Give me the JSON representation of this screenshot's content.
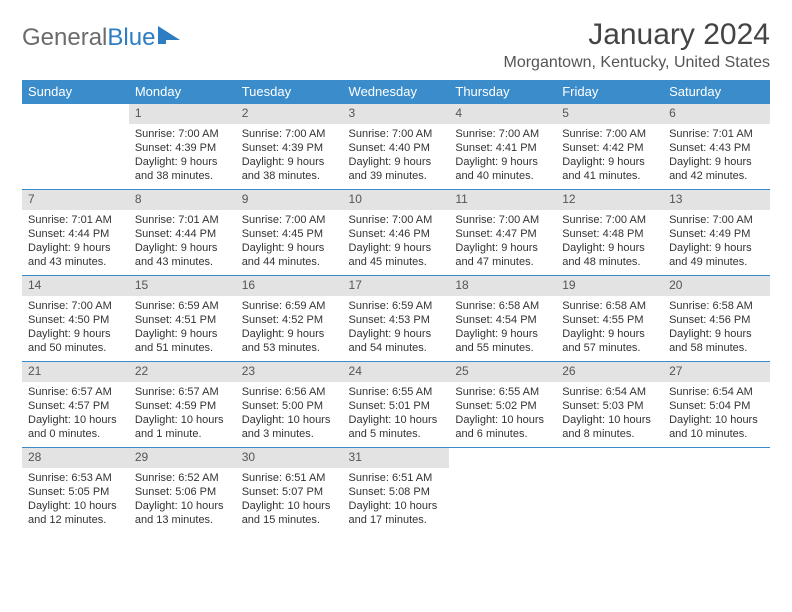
{
  "logo": {
    "word1": "General",
    "word2": "Blue"
  },
  "title": "January 2024",
  "location": "Morgantown, Kentucky, United States",
  "colors": {
    "header_bg": "#3b8ccb",
    "header_text": "#ffffff",
    "daynum_bg": "#e3e3e3",
    "row_border": "#3b8ccb",
    "logo_gray": "#6b6b6b",
    "logo_blue": "#2c7dc1"
  },
  "weekdays": [
    "Sunday",
    "Monday",
    "Tuesday",
    "Wednesday",
    "Thursday",
    "Friday",
    "Saturday"
  ],
  "weeks": [
    [
      {
        "n": "",
        "sr": "",
        "ss": "",
        "dl": ""
      },
      {
        "n": "1",
        "sr": "Sunrise: 7:00 AM",
        "ss": "Sunset: 4:39 PM",
        "dl": "Daylight: 9 hours and 38 minutes."
      },
      {
        "n": "2",
        "sr": "Sunrise: 7:00 AM",
        "ss": "Sunset: 4:39 PM",
        "dl": "Daylight: 9 hours and 38 minutes."
      },
      {
        "n": "3",
        "sr": "Sunrise: 7:00 AM",
        "ss": "Sunset: 4:40 PM",
        "dl": "Daylight: 9 hours and 39 minutes."
      },
      {
        "n": "4",
        "sr": "Sunrise: 7:00 AM",
        "ss": "Sunset: 4:41 PM",
        "dl": "Daylight: 9 hours and 40 minutes."
      },
      {
        "n": "5",
        "sr": "Sunrise: 7:00 AM",
        "ss": "Sunset: 4:42 PM",
        "dl": "Daylight: 9 hours and 41 minutes."
      },
      {
        "n": "6",
        "sr": "Sunrise: 7:01 AM",
        "ss": "Sunset: 4:43 PM",
        "dl": "Daylight: 9 hours and 42 minutes."
      }
    ],
    [
      {
        "n": "7",
        "sr": "Sunrise: 7:01 AM",
        "ss": "Sunset: 4:44 PM",
        "dl": "Daylight: 9 hours and 43 minutes."
      },
      {
        "n": "8",
        "sr": "Sunrise: 7:01 AM",
        "ss": "Sunset: 4:44 PM",
        "dl": "Daylight: 9 hours and 43 minutes."
      },
      {
        "n": "9",
        "sr": "Sunrise: 7:00 AM",
        "ss": "Sunset: 4:45 PM",
        "dl": "Daylight: 9 hours and 44 minutes."
      },
      {
        "n": "10",
        "sr": "Sunrise: 7:00 AM",
        "ss": "Sunset: 4:46 PM",
        "dl": "Daylight: 9 hours and 45 minutes."
      },
      {
        "n": "11",
        "sr": "Sunrise: 7:00 AM",
        "ss": "Sunset: 4:47 PM",
        "dl": "Daylight: 9 hours and 47 minutes."
      },
      {
        "n": "12",
        "sr": "Sunrise: 7:00 AM",
        "ss": "Sunset: 4:48 PM",
        "dl": "Daylight: 9 hours and 48 minutes."
      },
      {
        "n": "13",
        "sr": "Sunrise: 7:00 AM",
        "ss": "Sunset: 4:49 PM",
        "dl": "Daylight: 9 hours and 49 minutes."
      }
    ],
    [
      {
        "n": "14",
        "sr": "Sunrise: 7:00 AM",
        "ss": "Sunset: 4:50 PM",
        "dl": "Daylight: 9 hours and 50 minutes."
      },
      {
        "n": "15",
        "sr": "Sunrise: 6:59 AM",
        "ss": "Sunset: 4:51 PM",
        "dl": "Daylight: 9 hours and 51 minutes."
      },
      {
        "n": "16",
        "sr": "Sunrise: 6:59 AM",
        "ss": "Sunset: 4:52 PM",
        "dl": "Daylight: 9 hours and 53 minutes."
      },
      {
        "n": "17",
        "sr": "Sunrise: 6:59 AM",
        "ss": "Sunset: 4:53 PM",
        "dl": "Daylight: 9 hours and 54 minutes."
      },
      {
        "n": "18",
        "sr": "Sunrise: 6:58 AM",
        "ss": "Sunset: 4:54 PM",
        "dl": "Daylight: 9 hours and 55 minutes."
      },
      {
        "n": "19",
        "sr": "Sunrise: 6:58 AM",
        "ss": "Sunset: 4:55 PM",
        "dl": "Daylight: 9 hours and 57 minutes."
      },
      {
        "n": "20",
        "sr": "Sunrise: 6:58 AM",
        "ss": "Sunset: 4:56 PM",
        "dl": "Daylight: 9 hours and 58 minutes."
      }
    ],
    [
      {
        "n": "21",
        "sr": "Sunrise: 6:57 AM",
        "ss": "Sunset: 4:57 PM",
        "dl": "Daylight: 10 hours and 0 minutes."
      },
      {
        "n": "22",
        "sr": "Sunrise: 6:57 AM",
        "ss": "Sunset: 4:59 PM",
        "dl": "Daylight: 10 hours and 1 minute."
      },
      {
        "n": "23",
        "sr": "Sunrise: 6:56 AM",
        "ss": "Sunset: 5:00 PM",
        "dl": "Daylight: 10 hours and 3 minutes."
      },
      {
        "n": "24",
        "sr": "Sunrise: 6:55 AM",
        "ss": "Sunset: 5:01 PM",
        "dl": "Daylight: 10 hours and 5 minutes."
      },
      {
        "n": "25",
        "sr": "Sunrise: 6:55 AM",
        "ss": "Sunset: 5:02 PM",
        "dl": "Daylight: 10 hours and 6 minutes."
      },
      {
        "n": "26",
        "sr": "Sunrise: 6:54 AM",
        "ss": "Sunset: 5:03 PM",
        "dl": "Daylight: 10 hours and 8 minutes."
      },
      {
        "n": "27",
        "sr": "Sunrise: 6:54 AM",
        "ss": "Sunset: 5:04 PM",
        "dl": "Daylight: 10 hours and 10 minutes."
      }
    ],
    [
      {
        "n": "28",
        "sr": "Sunrise: 6:53 AM",
        "ss": "Sunset: 5:05 PM",
        "dl": "Daylight: 10 hours and 12 minutes."
      },
      {
        "n": "29",
        "sr": "Sunrise: 6:52 AM",
        "ss": "Sunset: 5:06 PM",
        "dl": "Daylight: 10 hours and 13 minutes."
      },
      {
        "n": "30",
        "sr": "Sunrise: 6:51 AM",
        "ss": "Sunset: 5:07 PM",
        "dl": "Daylight: 10 hours and 15 minutes."
      },
      {
        "n": "31",
        "sr": "Sunrise: 6:51 AM",
        "ss": "Sunset: 5:08 PM",
        "dl": "Daylight: 10 hours and 17 minutes."
      },
      {
        "n": "",
        "sr": "",
        "ss": "",
        "dl": ""
      },
      {
        "n": "",
        "sr": "",
        "ss": "",
        "dl": ""
      },
      {
        "n": "",
        "sr": "",
        "ss": "",
        "dl": ""
      }
    ]
  ]
}
